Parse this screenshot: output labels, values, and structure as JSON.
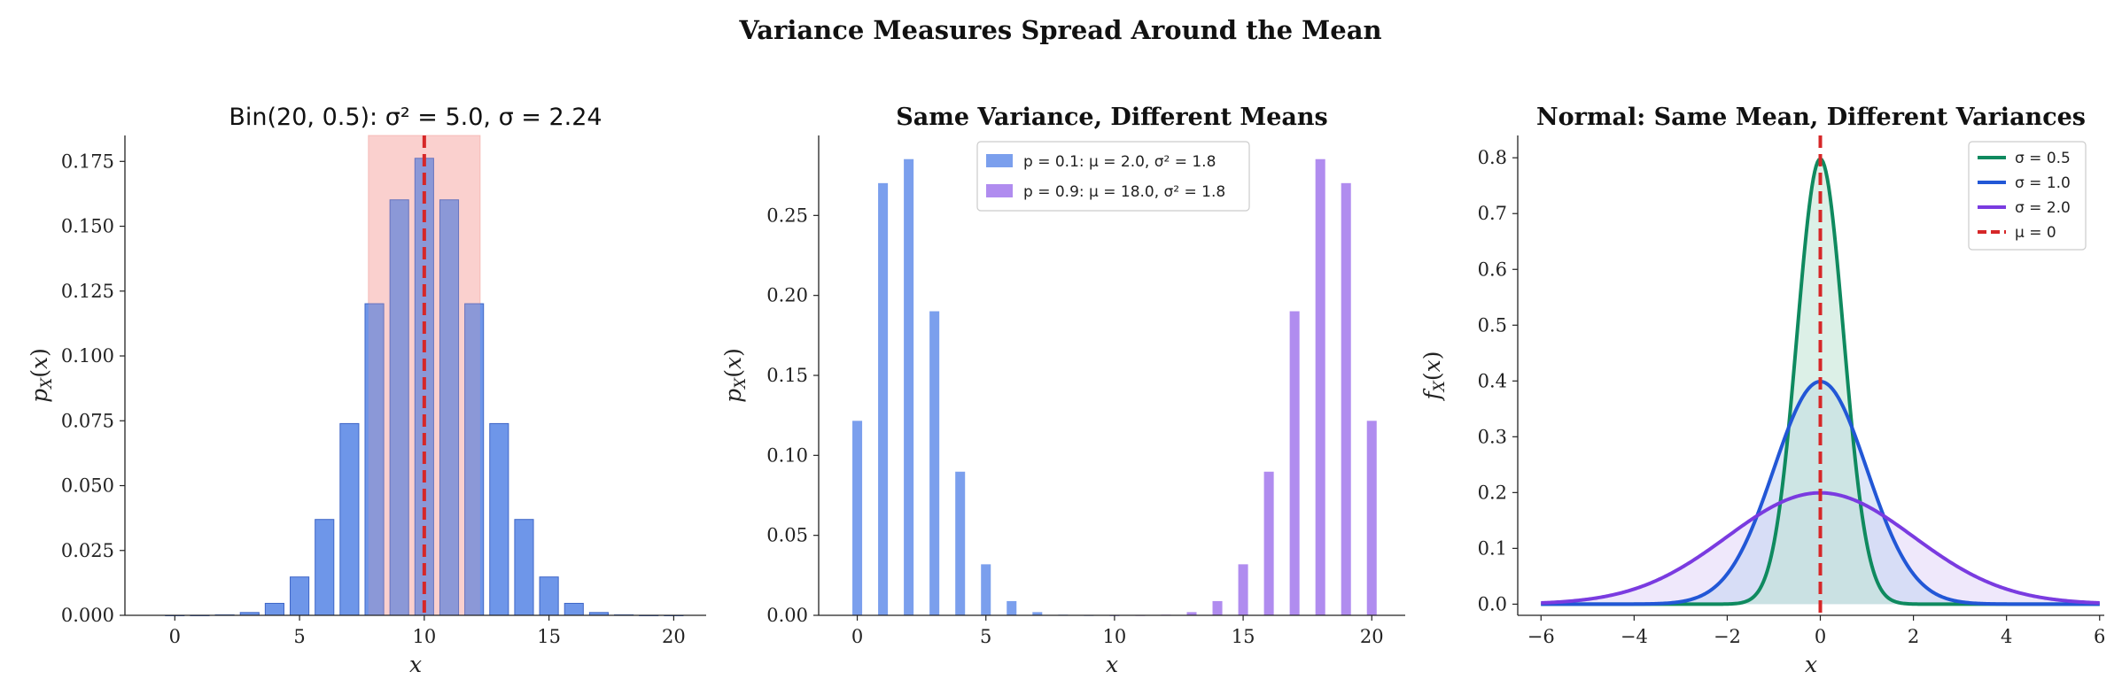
{
  "figure": {
    "title": "Variance Measures Spread Around the Mean"
  },
  "chart_data": [
    {
      "type": "bar",
      "title": "Bin(20, 0.5): σ² = 5.0, σ = 2.24",
      "xlabel": "x",
      "ylabel": "p_X(x)",
      "xlim": [
        -2,
        21.3
      ],
      "ylim": [
        0,
        0.185
      ],
      "x_ticks": [
        "0",
        "5",
        "10",
        "15",
        "20"
      ],
      "y_ticks": [
        "0.000",
        "0.025",
        "0.050",
        "0.075",
        "0.100",
        "0.125",
        "0.150",
        "0.175"
      ],
      "x": [
        0,
        1,
        2,
        3,
        4,
        5,
        6,
        7,
        8,
        9,
        10,
        11,
        12,
        13,
        14,
        15,
        16,
        17,
        18,
        19,
        20
      ],
      "values": [
        1e-06,
        1.9e-05,
        0.000181,
        0.001087,
        0.004621,
        0.014786,
        0.036964,
        0.073929,
        0.120134,
        0.160179,
        0.176197,
        0.160179,
        0.120134,
        0.073929,
        0.036964,
        0.014786,
        0.004621,
        0.001087,
        0.000181,
        1.9e-05,
        1e-06
      ],
      "mean": 10,
      "sd_band": [
        7.76,
        12.24
      ],
      "colors": {
        "bar": "#6690e8",
        "bar_edge": "#3f66c7",
        "band": "#f4a6a0",
        "mean_line": "#d62728"
      }
    },
    {
      "type": "bar",
      "title": "Same Variance, Different Means",
      "xlabel": "x",
      "ylabel": "p_X(x)",
      "xlim": [
        -1.5,
        21.3
      ],
      "ylim": [
        0,
        0.3
      ],
      "x_ticks": [
        "0",
        "5",
        "10",
        "15",
        "20"
      ],
      "y_ticks": [
        "0.00",
        "0.05",
        "0.10",
        "0.15",
        "0.20",
        "0.25"
      ],
      "x": [
        0,
        1,
        2,
        3,
        4,
        5,
        6,
        7,
        8,
        9,
        10,
        11,
        12,
        13,
        14,
        15,
        16,
        17,
        18,
        19,
        20
      ],
      "series": [
        {
          "name": "p = 0.1: μ = 2.0, σ² = 1.8",
          "color": "#7b9fed",
          "values": [
            0.1216,
            0.2702,
            0.2852,
            0.1901,
            0.0898,
            0.0319,
            0.0089,
            0.002,
            0.0004,
            6e-05,
            1e-05,
            0,
            0,
            0,
            0,
            0,
            0,
            0,
            0,
            0,
            0
          ]
        },
        {
          "name": "p = 0.9: μ = 18.0, σ² = 1.8",
          "color": "#b08cef",
          "values": [
            0,
            0,
            0,
            0,
            0,
            0,
            0,
            0,
            0,
            0,
            1e-05,
            6e-05,
            0.0004,
            0.002,
            0.0089,
            0.0319,
            0.0898,
            0.1901,
            0.2852,
            0.2702,
            0.1216
          ]
        }
      ]
    },
    {
      "type": "line",
      "title": "Normal: Same Mean, Different Variances",
      "xlabel": "x",
      "ylabel": "f_X(x)",
      "xlim": [
        -6.5,
        6.1
      ],
      "ylim": [
        -0.02,
        0.84
      ],
      "x_ticks": [
        "−6",
        "−4",
        "−2",
        "0",
        "2",
        "4",
        "6"
      ],
      "y_ticks": [
        "0.0",
        "0.1",
        "0.2",
        "0.3",
        "0.4",
        "0.5",
        "0.6",
        "0.7",
        "0.8"
      ],
      "domain": [
        -6,
        6
      ],
      "mean": 0,
      "series": [
        {
          "name": "σ = 0.5",
          "sigma": 0.5,
          "color": "#0f8a5f",
          "fill": "#bfe3d4"
        },
        {
          "name": "σ = 1.0",
          "sigma": 1.0,
          "color": "#2257d6",
          "fill": "#c3d3f3"
        },
        {
          "name": "σ = 2.0",
          "sigma": 2.0,
          "color": "#7a3be0",
          "fill": "#e2d5f7"
        },
        {
          "name": "μ = 0",
          "color": "#d62728",
          "dashed": true
        }
      ],
      "legend": "top-right"
    }
  ]
}
